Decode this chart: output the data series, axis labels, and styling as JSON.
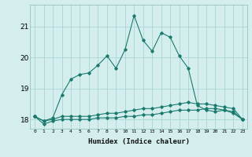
{
  "xlabel": "Humidex (Indice chaleur)",
  "x": [
    0,
    1,
    2,
    3,
    4,
    5,
    6,
    7,
    8,
    9,
    10,
    11,
    12,
    13,
    14,
    15,
    16,
    17,
    18,
    19,
    20,
    21,
    22,
    23
  ],
  "y_max": [
    18.1,
    17.95,
    18.05,
    18.8,
    19.3,
    19.45,
    19.5,
    19.75,
    20.05,
    19.65,
    20.25,
    21.35,
    20.55,
    20.2,
    20.8,
    20.65,
    20.05,
    19.65,
    18.45,
    18.3,
    18.25,
    18.3,
    18.2,
    18.0
  ],
  "y_mean": [
    18.1,
    17.95,
    18.0,
    18.1,
    18.1,
    18.1,
    18.1,
    18.15,
    18.2,
    18.2,
    18.25,
    18.3,
    18.35,
    18.35,
    18.4,
    18.45,
    18.5,
    18.55,
    18.5,
    18.5,
    18.45,
    18.4,
    18.35,
    18.0
  ],
  "y_min": [
    18.1,
    17.85,
    17.95,
    18.0,
    18.0,
    18.0,
    18.0,
    18.05,
    18.05,
    18.05,
    18.1,
    18.1,
    18.15,
    18.15,
    18.2,
    18.25,
    18.3,
    18.3,
    18.3,
    18.35,
    18.35,
    18.3,
    18.25,
    18.0
  ],
  "line_color": "#1a7a6e",
  "bg_color": "#d4eeee",
  "grid_color": "#aad4d4",
  "ylim": [
    17.7,
    21.7
  ],
  "yticks": [
    18,
    19,
    20,
    21
  ],
  "xticks": [
    0,
    1,
    2,
    3,
    4,
    5,
    6,
    7,
    8,
    9,
    10,
    11,
    12,
    13,
    14,
    15,
    16,
    17,
    18,
    19,
    20,
    21,
    22,
    23
  ]
}
